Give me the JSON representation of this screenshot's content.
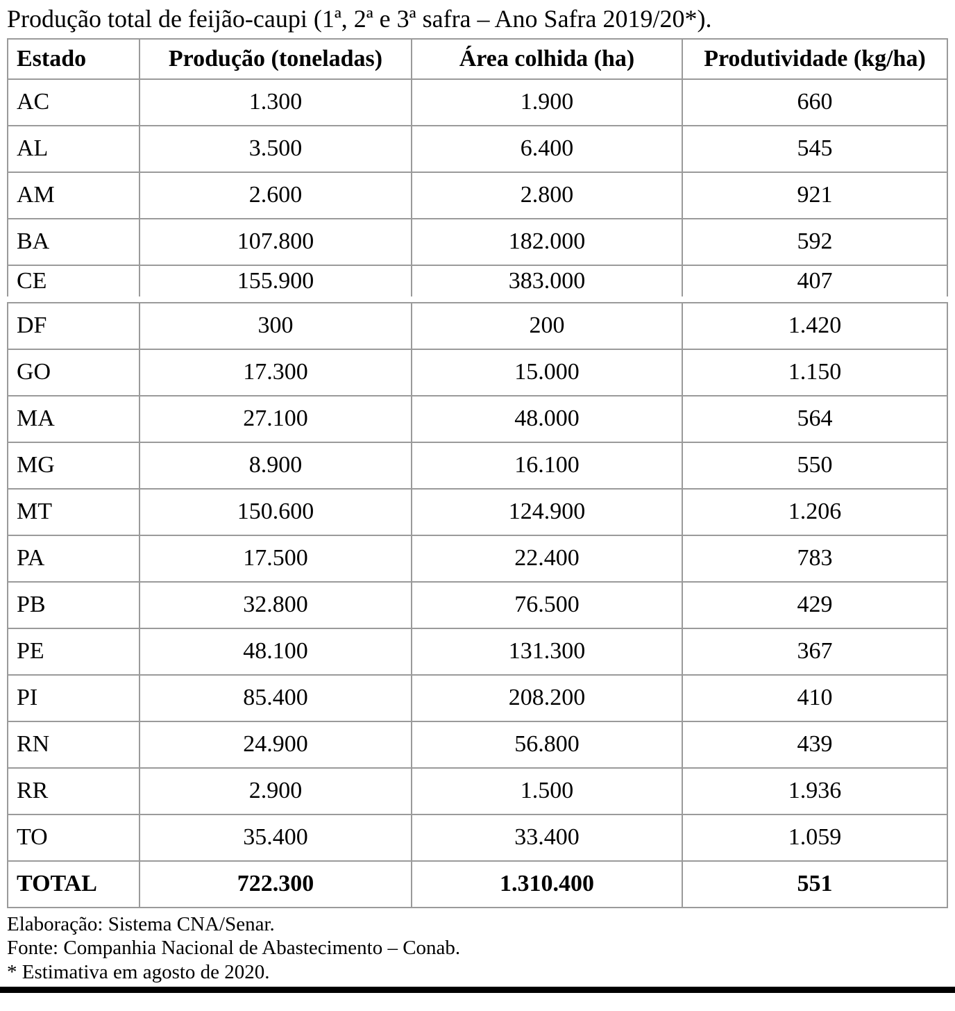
{
  "page": {
    "title": "Produção total de feijão-caupi (1ª, 2ª e 3ª safra – Ano Safra 2019/20*)."
  },
  "table": {
    "columns": [
      "Estado",
      "Produção (toneladas)",
      "Área colhida (ha)",
      "Produtividade (kg/ha)"
    ],
    "section1": {
      "rows": [
        [
          "AC",
          "1.300",
          "1.900",
          "660"
        ],
        [
          "AL",
          "3.500",
          "6.400",
          "545"
        ],
        [
          "AM",
          "2.600",
          "2.800",
          "921"
        ],
        [
          "BA",
          "107.800",
          "182.000",
          "592"
        ],
        [
          "CE",
          "155.900",
          "383.000",
          "407"
        ]
      ]
    },
    "section2": {
      "rows": [
        [
          "DF",
          "300",
          "200",
          "1.420"
        ],
        [
          "GO",
          "17.300",
          "15.000",
          "1.150"
        ],
        [
          "MA",
          "27.100",
          "48.000",
          "564"
        ],
        [
          "MG",
          "8.900",
          "16.100",
          "550"
        ],
        [
          "MT",
          "150.600",
          "124.900",
          "1.206"
        ],
        [
          "PA",
          "17.500",
          "22.400",
          "783"
        ],
        [
          "PB",
          "32.800",
          "76.500",
          "429"
        ],
        [
          "PE",
          "48.100",
          "131.300",
          "367"
        ],
        [
          "PI",
          "85.400",
          "208.200",
          "410"
        ],
        [
          "RN",
          "24.900",
          "56.800",
          "439"
        ],
        [
          "RR",
          "2.900",
          "1.500",
          "1.936"
        ],
        [
          "TO",
          "35.400",
          "33.400",
          "1.059"
        ]
      ]
    },
    "total_row": [
      "TOTAL",
      "722.300",
      "1.310.400",
      "551"
    ]
  },
  "footnotes": {
    "elaboration": "Elaboração: Sistema CNA/Senar.",
    "source": "Fonte: Companhia Nacional de Abastecimento – Conab.",
    "estimate": "* Estimativa em agosto de 2020."
  },
  "colors": {
    "border": "#9a9a9a",
    "text": "#000000",
    "bottom_bar": "#000000",
    "background": "#ffffff"
  }
}
